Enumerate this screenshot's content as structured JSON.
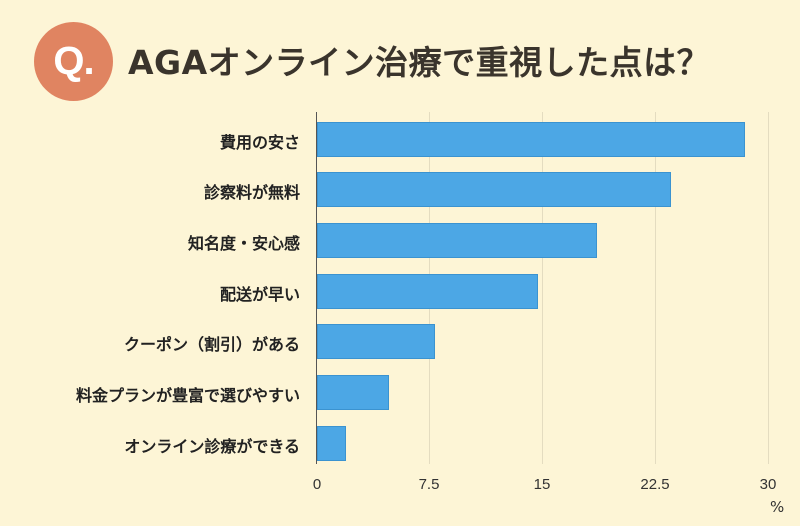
{
  "header": {
    "badge": "Q.",
    "title": "AGAオンライン治療で重視した点は？"
  },
  "colors": {
    "background": "#fdf5d6",
    "bar": "#4ca7e5",
    "badge": "#e08461",
    "title": "#3a342c"
  },
  "chart_data": {
    "type": "bar",
    "orientation": "horizontal",
    "title": "AGAオンライン治療で重視した点は？",
    "categories": [
      "費用の安さ",
      "診察料が無料",
      "知名度・安心感",
      "配送が早い",
      "クーポン（割引）がある",
      "料金プランが豊富で選びやすい",
      "オンライン診療ができる"
    ],
    "values": [
      28.4,
      23.5,
      18.6,
      14.7,
      7.8,
      4.8,
      1.9
    ],
    "xlabel": "%",
    "ylabel": "",
    "xlim": [
      0,
      30
    ],
    "xticks": [
      "0",
      "7.5",
      "15",
      "22.5",
      "30"
    ],
    "grid": true,
    "legend": null
  },
  "axis": {
    "unit": "%",
    "ticks": [
      "0",
      "7.5",
      "15",
      "22.5",
      "30"
    ]
  }
}
